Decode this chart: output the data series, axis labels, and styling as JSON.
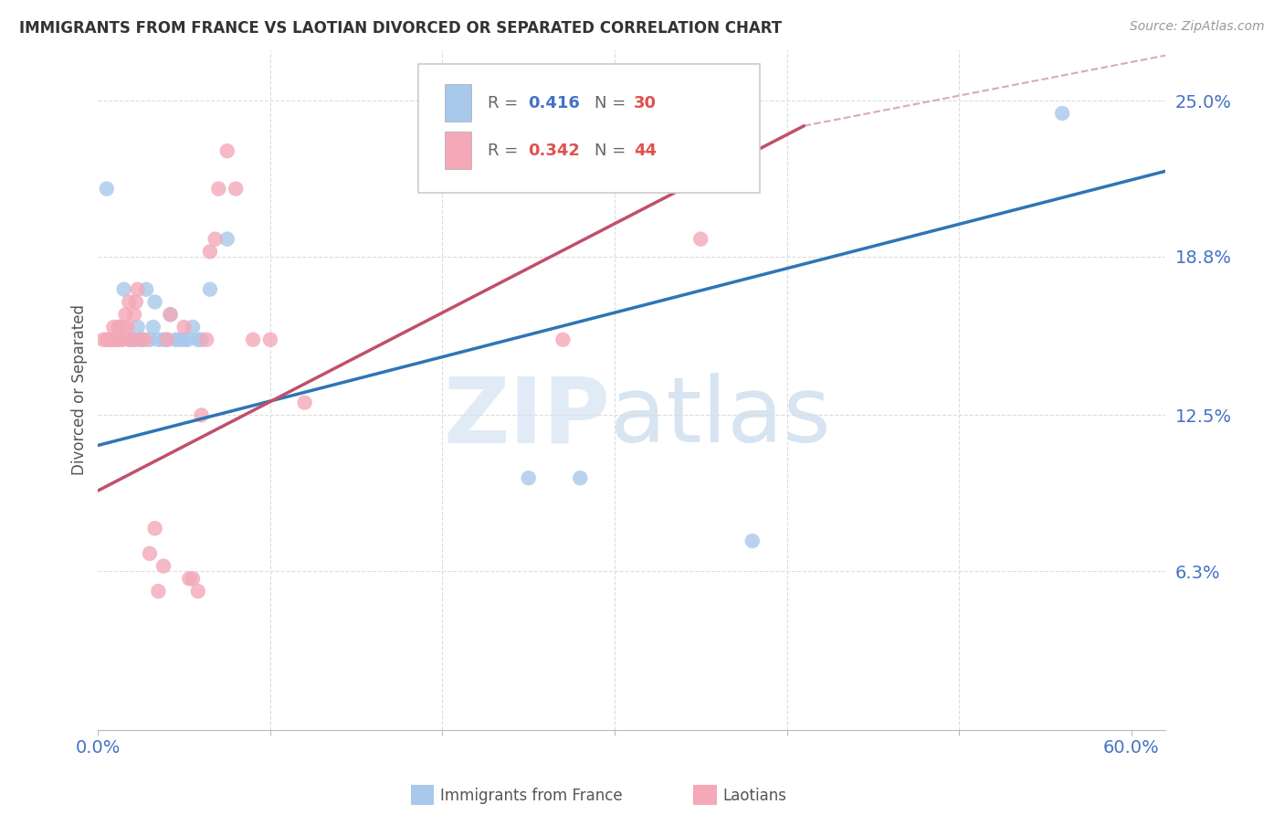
{
  "title": "IMMIGRANTS FROM FRANCE VS LAOTIAN DIVORCED OR SEPARATED CORRELATION CHART",
  "source": "Source: ZipAtlas.com",
  "ylabel": "Divorced or Separated",
  "legend_france_R": "0.416",
  "legend_france_N": "30",
  "legend_laotian_R": "0.342",
  "legend_laotian_N": "44",
  "legend_label_france": "Immigrants from France",
  "legend_label_laotian": "Laotians",
  "france_color": "#A8C8EC",
  "laotian_color": "#F4A8B8",
  "trendline_france_color": "#2E75B6",
  "trendline_laotian_color": "#C0506A",
  "diagonal_color": "#D8A0B0",
  "background_color": "#FFFFFF",
  "grid_color": "#DDDDDD",
  "axis_label_color": "#4472C4",
  "france_points_x": [
    0.005,
    0.01,
    0.012,
    0.015,
    0.018,
    0.02,
    0.022,
    0.023,
    0.025,
    0.028,
    0.03,
    0.032,
    0.033,
    0.035,
    0.038,
    0.04,
    0.042,
    0.045,
    0.047,
    0.05,
    0.052,
    0.055,
    0.058,
    0.06,
    0.065,
    0.075,
    0.25,
    0.28,
    0.38,
    0.56
  ],
  "france_points_y": [
    0.215,
    0.155,
    0.16,
    0.175,
    0.155,
    0.155,
    0.155,
    0.16,
    0.155,
    0.175,
    0.155,
    0.16,
    0.17,
    0.155,
    0.155,
    0.155,
    0.165,
    0.155,
    0.155,
    0.155,
    0.155,
    0.16,
    0.155,
    0.155,
    0.175,
    0.195,
    0.1,
    0.1,
    0.075,
    0.245
  ],
  "laotian_points_x": [
    0.003,
    0.005,
    0.006,
    0.007,
    0.008,
    0.009,
    0.01,
    0.011,
    0.012,
    0.013,
    0.014,
    0.015,
    0.016,
    0.017,
    0.018,
    0.019,
    0.02,
    0.021,
    0.022,
    0.023,
    0.025,
    0.027,
    0.03,
    0.033,
    0.035,
    0.038,
    0.04,
    0.042,
    0.05,
    0.053,
    0.055,
    0.058,
    0.06,
    0.063,
    0.065,
    0.068,
    0.07,
    0.075,
    0.08,
    0.09,
    0.1,
    0.12,
    0.27,
    0.35
  ],
  "laotian_points_y": [
    0.155,
    0.155,
    0.155,
    0.155,
    0.155,
    0.16,
    0.155,
    0.155,
    0.16,
    0.155,
    0.155,
    0.16,
    0.165,
    0.16,
    0.17,
    0.155,
    0.155,
    0.165,
    0.17,
    0.175,
    0.155,
    0.155,
    0.07,
    0.08,
    0.055,
    0.065,
    0.155,
    0.165,
    0.16,
    0.06,
    0.06,
    0.055,
    0.125,
    0.155,
    0.19,
    0.195,
    0.215,
    0.23,
    0.215,
    0.155,
    0.155,
    0.13,
    0.155,
    0.195
  ],
  "xlim": [
    0.0,
    0.62
  ],
  "ylim": [
    0.0,
    0.27
  ],
  "ytick_positions": [
    0.0,
    0.063,
    0.125,
    0.188,
    0.25
  ],
  "ytick_labels": [
    "",
    "6.3%",
    "12.5%",
    "18.8%",
    "25.0%"
  ],
  "xtick_positions": [
    0.0,
    0.1,
    0.2,
    0.3,
    0.4,
    0.5,
    0.6
  ],
  "xtick_labels_bottom": [
    "0.0%",
    "",
    "",
    "",
    "",
    "",
    "60.0%"
  ]
}
